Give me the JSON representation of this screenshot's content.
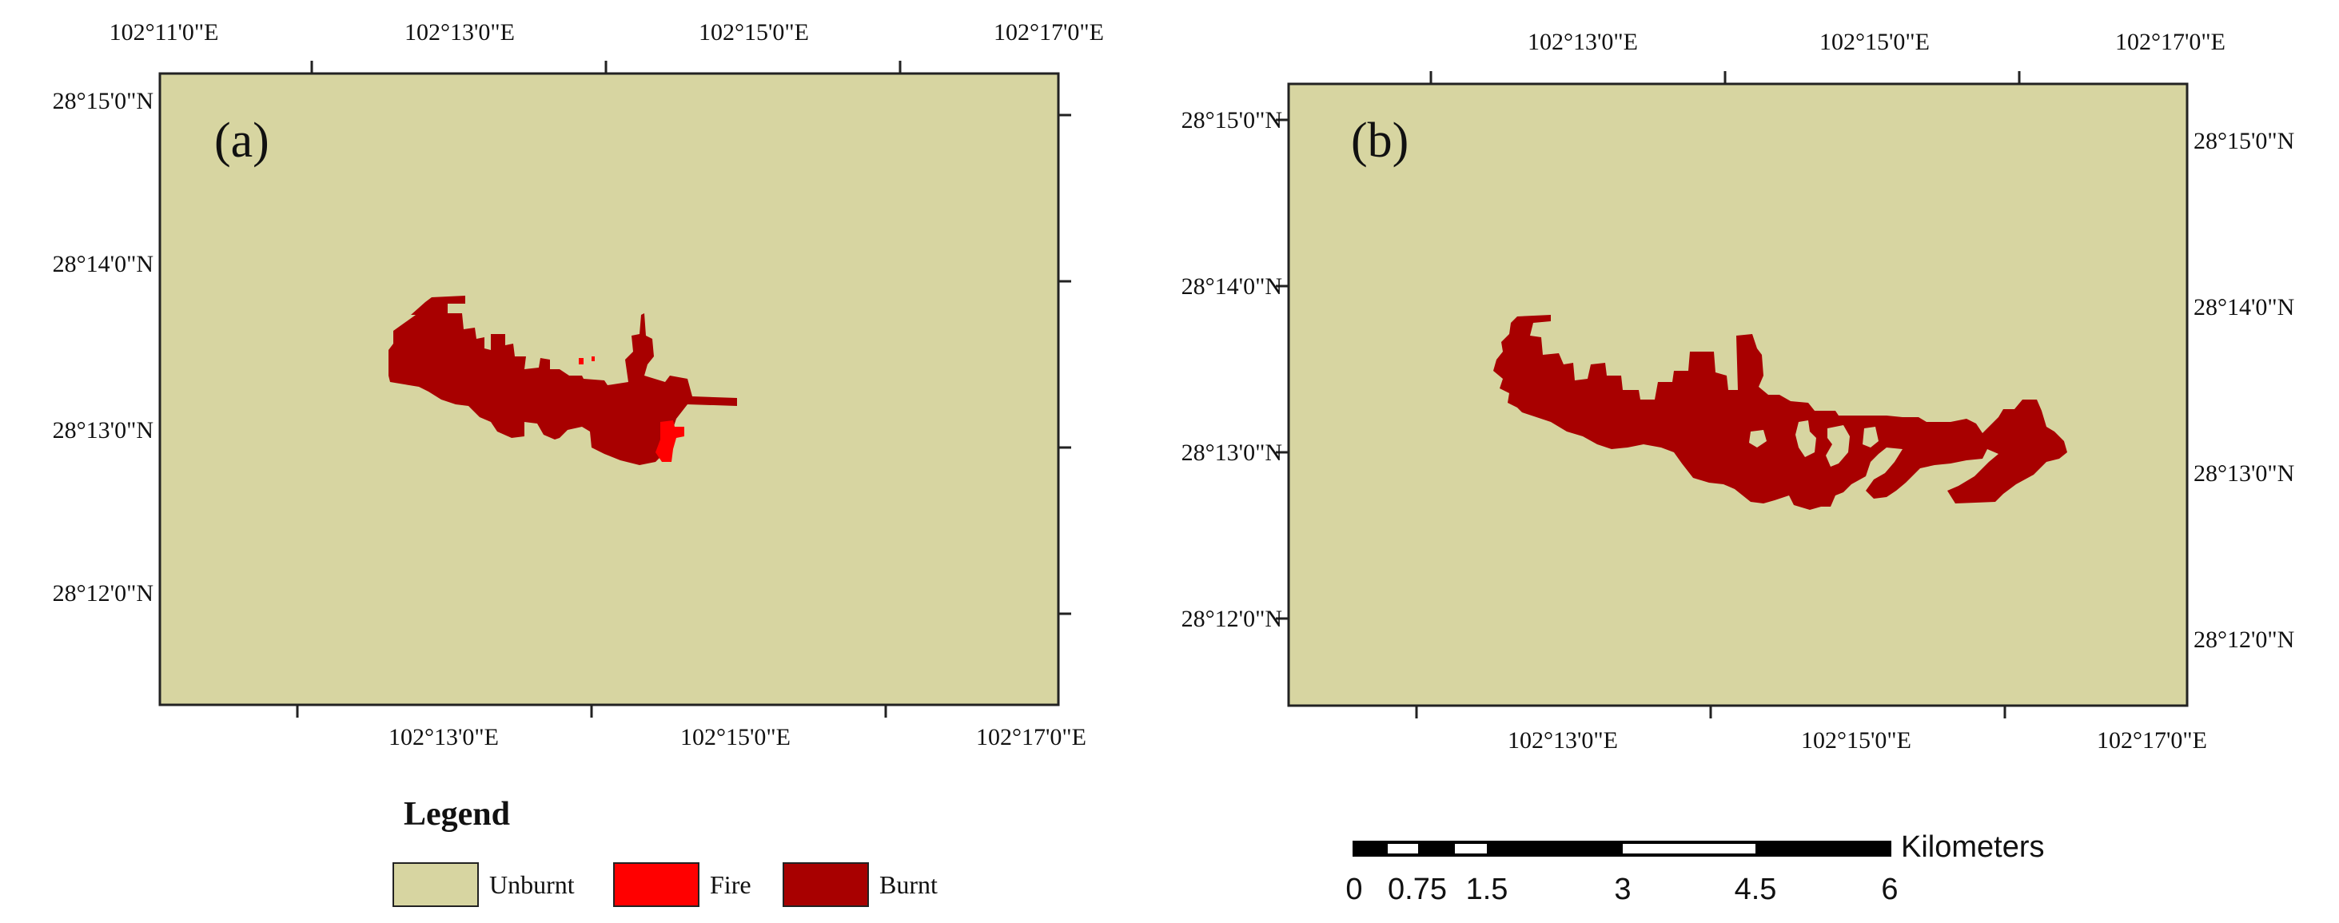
{
  "colors": {
    "unburnt": "#d7d5a1",
    "fire": "#ff0000",
    "burnt": "#a80000",
    "frame": "#222222"
  },
  "panel_a": {
    "label": "(a)",
    "top_ticks": [
      "102°11'0\"E",
      "102°13'0\"E",
      "102°15'0\"E",
      "102°17'0\"E"
    ],
    "bottom_ticks": [
      "102°13'0\"E",
      "102°15'0\"E",
      "102°17'0\"E"
    ],
    "left_ticks": [
      "28°15'0\"N",
      "28°14'0\"N",
      "28°13'0\"N",
      "28°12'0\"N"
    ]
  },
  "panel_b": {
    "label": "(b)",
    "top_ticks": [
      "102°13'0\"E",
      "102°15'0\"E",
      "102°17'0\"E"
    ],
    "bottom_ticks": [
      "102°13'0\"E",
      "102°15'0\"E",
      "102°17'0\"E"
    ],
    "left_ticks": [
      "28°15'0\"N",
      "28°14'0\"N",
      "28°13'0\"N",
      "28°12'0\"N"
    ],
    "right_ticks": [
      "28°15'0\"N",
      "28°14'0\"N",
      "28°13'0\"N",
      "28°12'0\"N"
    ]
  },
  "legend": {
    "title": "Legend",
    "items": [
      {
        "label": "Unburnt",
        "color_key": "unburnt"
      },
      {
        "label": "Fire",
        "color_key": "fire"
      },
      {
        "label": "Burnt",
        "color_key": "burnt"
      }
    ]
  },
  "scale_bar": {
    "unit": "Kilometers",
    "labels": [
      "0",
      "0.75",
      "1.5",
      "3",
      "4.5",
      "6"
    ]
  }
}
